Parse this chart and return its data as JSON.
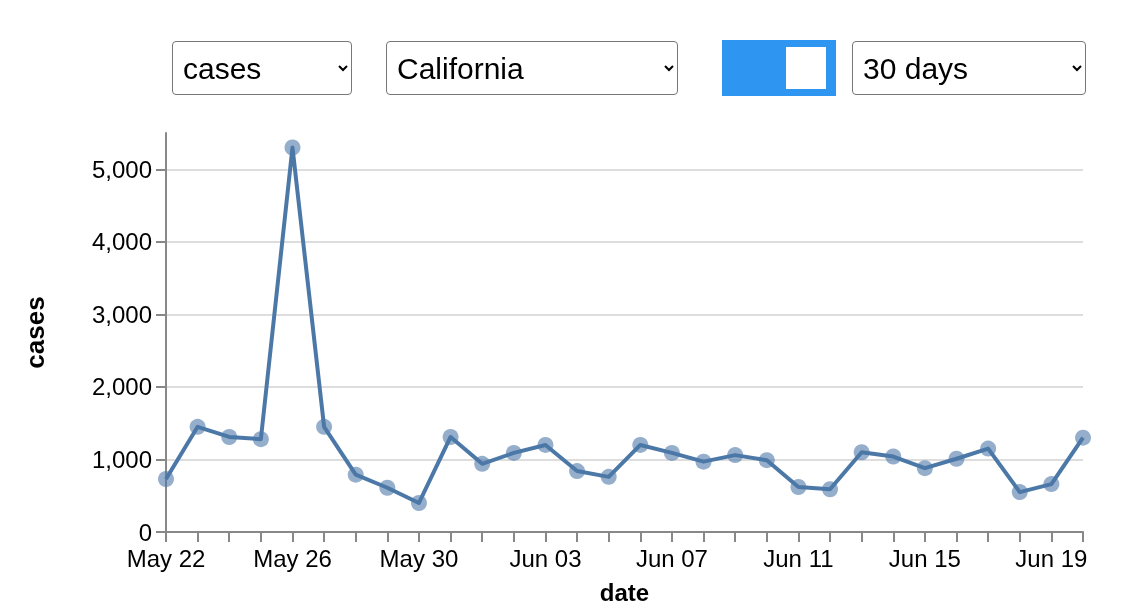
{
  "chart_data": {
    "type": "line",
    "xlabel": "date",
    "ylabel": "cases",
    "annotations": [
      "cases",
      "California",
      "30 days"
    ],
    "x": [
      "--05-22",
      "--05-23",
      "--05-24",
      "--05-25",
      "--05-26",
      "--05-27",
      "--05-28",
      "--05-29",
      "--05-30",
      "--05-31",
      "--06-01",
      "--06-02",
      "--06-03",
      "--06-04",
      "--06-05",
      "--06-06",
      "--06-07",
      "--06-08",
      "--06-09",
      "--06-10",
      "--06-11",
      "--06-12",
      "--06-13",
      "--06-14",
      "--06-15",
      "--06-16",
      "--06-17",
      "--06-18",
      "--06-19",
      "--06-20"
    ],
    "series": [
      {
        "color": "#4c78a8",
        "values": [
          730,
          1450,
          1310,
          1280,
          5300,
          1450,
          790,
          610,
          400,
          1310,
          940,
          1090,
          1200,
          840,
          760,
          1200,
          1090,
          970,
          1060,
          990,
          620,
          590,
          1100,
          1040,
          880,
          1010,
          1150,
          550,
          660,
          1300
        ]
      }
    ],
    "xlim": [
      "--05-22",
      "--06-20"
    ],
    "xticks": [
      {
        "value": "--05-22",
        "label": "May 22"
      },
      {
        "value": "--05-23",
        "label": null
      },
      {
        "value": "--05-24",
        "label": null
      },
      {
        "value": "--05-25",
        "label": null
      },
      {
        "value": "--05-26",
        "label": "May 26"
      },
      {
        "value": "--05-27",
        "label": null
      },
      {
        "value": "--05-28",
        "label": null
      },
      {
        "value": "--05-29",
        "label": null
      },
      {
        "value": "--05-30",
        "label": "May 30"
      },
      {
        "value": "--05-31",
        "label": null
      },
      {
        "value": "--06-01",
        "label": null
      },
      {
        "value": "--06-02",
        "label": null
      },
      {
        "value": "--06-03",
        "label": "Jun 03"
      },
      {
        "value": "--06-04",
        "label": null
      },
      {
        "value": "--06-05",
        "label": null
      },
      {
        "value": "--06-06",
        "label": null
      },
      {
        "value": "--06-07",
        "label": "Jun 07"
      },
      {
        "value": "--06-08",
        "label": null
      },
      {
        "value": "--06-09",
        "label": null
      },
      {
        "value": "--06-10",
        "label": null
      },
      {
        "value": "--06-11",
        "label": "Jun 11"
      },
      {
        "value": "--06-12",
        "label": null
      },
      {
        "value": "--06-13",
        "label": null
      },
      {
        "value": "--06-14",
        "label": null
      },
      {
        "value": "--06-15",
        "label": "Jun 15"
      },
      {
        "value": "--06-16",
        "label": null
      },
      {
        "value": "--06-17",
        "label": null
      },
      {
        "value": "--06-18",
        "label": null
      },
      {
        "value": "--06-19",
        "label": "Jun 19"
      },
      {
        "value": "--06-20",
        "label": null
      }
    ],
    "ylim": [
      0,
      5500
    ],
    "yticks": [
      {
        "value": 0,
        "label": "0"
      },
      {
        "value": 1000,
        "label": "1,000"
      },
      {
        "value": 2000,
        "label": "2,000"
      },
      {
        "value": 3000,
        "label": "3,000"
      },
      {
        "value": 4000,
        "label": "4,000"
      },
      {
        "value": 5000,
        "label": "5,000"
      }
    ],
    "grid": "y",
    "marker": "circle",
    "line_style": "solid"
  }
}
